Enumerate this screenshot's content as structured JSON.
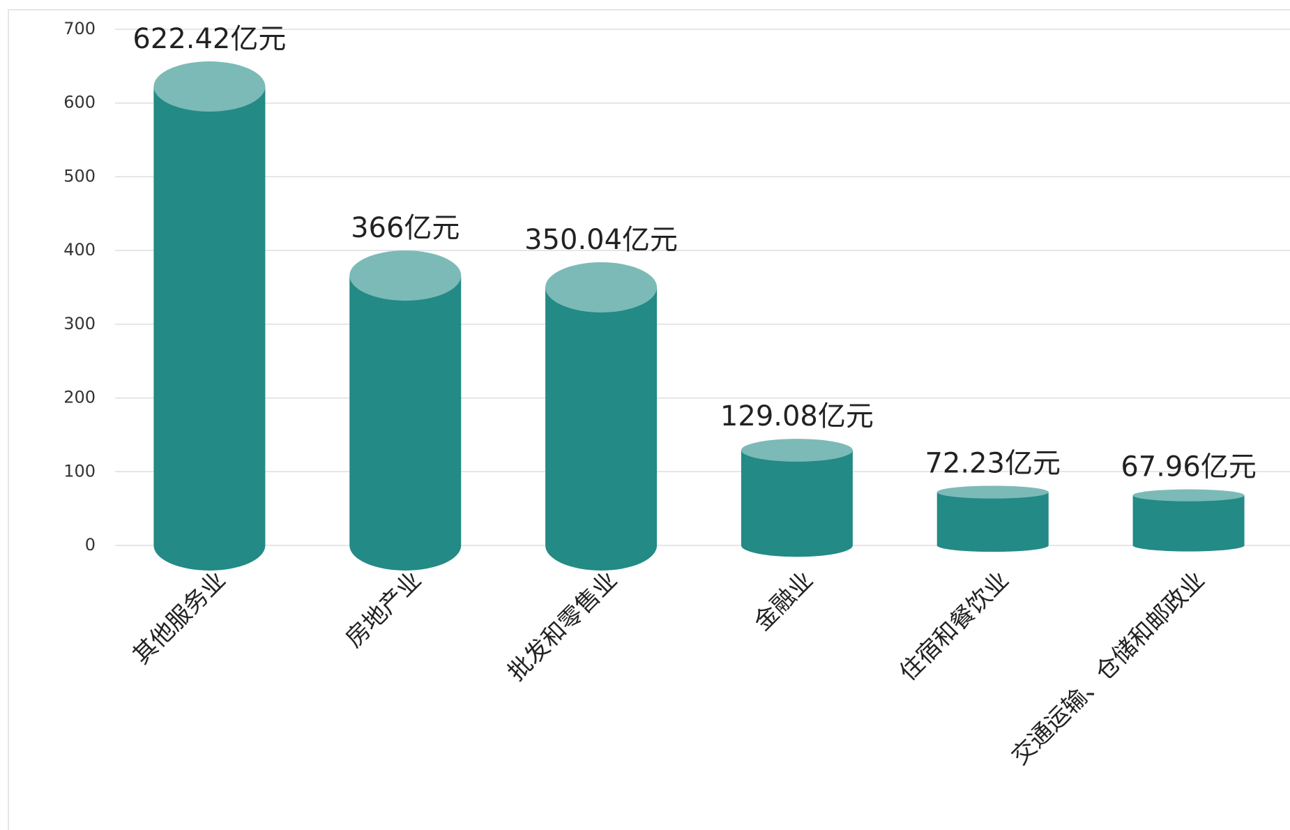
{
  "chart_data": {
    "type": "bar",
    "categories": [
      "其他服务业",
      "房地产业",
      "批发和零售业",
      "金融业",
      "住宿和餐饮业",
      "交通运输、仓储和邮政业"
    ],
    "values": [
      622.42,
      366,
      350.04,
      129.08,
      72.23,
      67.96
    ],
    "value_labels": [
      "622.42亿元",
      "366亿元",
      "350.04亿元",
      "129.08亿元",
      "72.23亿元",
      "67.96亿元"
    ],
    "color": "#238a86",
    "ylim": [
      0,
      700
    ],
    "yticks": [
      0,
      100,
      200,
      300,
      400,
      500,
      600,
      700
    ],
    "grid": true
  }
}
